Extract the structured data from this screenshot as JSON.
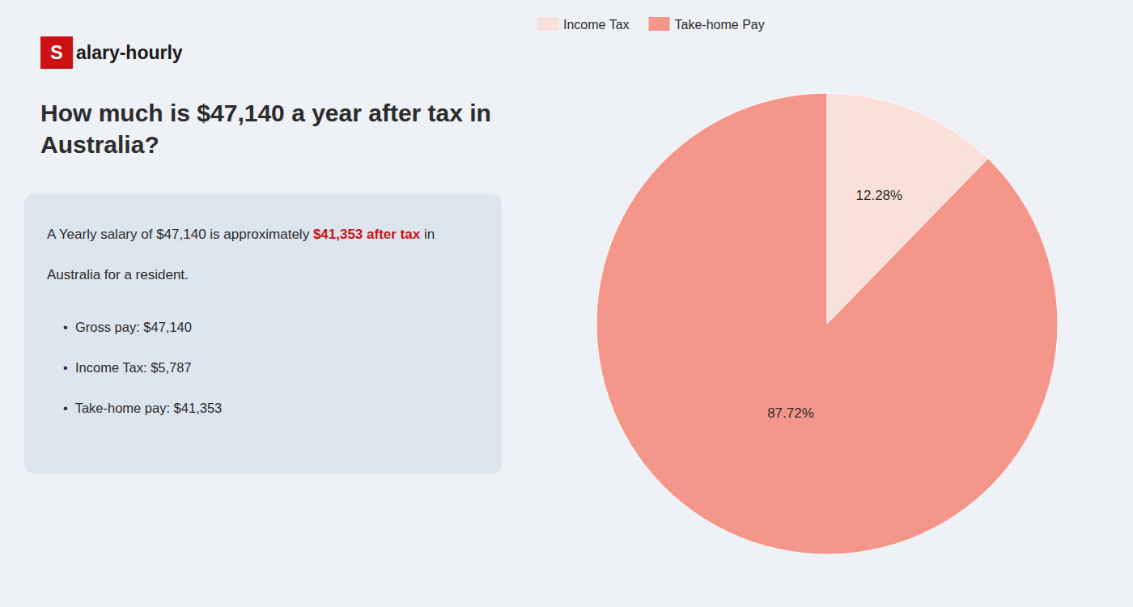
{
  "chart_data": {
    "type": "pie",
    "title": "How much is $47,140 a year after tax in\nAustralia?",
    "categories": [
      "Income Tax",
      "Take-home Pay"
    ],
    "values": [
      12.28,
      87.72
    ],
    "value_labels": [
      "12.28%",
      "87.72%"
    ],
    "colors": [
      "#fae0d8",
      "#f5968a"
    ],
    "data_labels": true,
    "legend": "upper left",
    "annotations": [
      {
        "text": "S",
        "color": "#cc1111"
      },
      {
        "text": "alary-hourly"
      },
      {
        "text": "A Yearly salary of $47,140 is approximately "
      },
      {
        "text": "$41,353 after tax",
        "color": "#cc1111"
      },
      {
        "text": " in"
      },
      {
        "text": "Australia for a resident."
      },
      {
        "text": "•  Gross pay: $47,140"
      },
      {
        "text": "•  Income Tax: $5,787"
      },
      {
        "text": "•  Take-home pay: $41,353"
      }
    ]
  }
}
